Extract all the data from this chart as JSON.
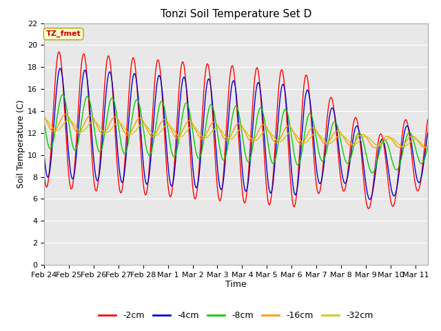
{
  "title": "Tonzi Soil Temperature Set D",
  "xlabel": "Time",
  "ylabel": "Soil Temperature (C)",
  "annotation": "TZ_fmet",
  "ylim": [
    0,
    22
  ],
  "yticks": [
    0,
    2,
    4,
    6,
    8,
    10,
    12,
    14,
    16,
    18,
    20,
    22
  ],
  "xtick_labels": [
    "Feb 24",
    "Feb 25",
    "Feb 26",
    "Feb 27",
    "Feb 28",
    "Mar 1",
    "Mar 2",
    "Mar 3",
    "Mar 4",
    "Mar 5",
    "Mar 6",
    "Mar 7",
    "Mar 8",
    "Mar 9",
    "Mar 10",
    "Mar 11"
  ],
  "legend_labels": [
    "-2cm",
    "-4cm",
    "-8cm",
    "-16cm",
    "-32cm"
  ],
  "legend_colors": [
    "#ff0000",
    "#0000cc",
    "#00cc00",
    "#ff9900",
    "#cccc00"
  ],
  "plot_bg_color": "#e8e8e8",
  "annotation_bg": "#ffffcc",
  "annotation_color": "#cc0000",
  "title_fontsize": 11,
  "label_fontsize": 9,
  "tick_fontsize": 8
}
